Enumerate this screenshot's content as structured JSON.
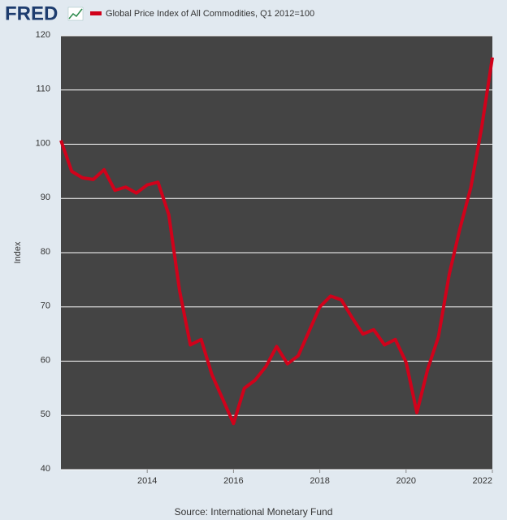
{
  "chart_data": {
    "type": "line",
    "logo": "FRED",
    "ylabel": "Index",
    "source": "Source: International Monetary Fund",
    "x": [
      2012,
      2012.25,
      2012.5,
      2012.75,
      2013,
      2013.25,
      2013.5,
      2013.75,
      2014,
      2014.25,
      2014.5,
      2014.75,
      2015,
      2015.25,
      2015.5,
      2015.75,
      2016,
      2016.25,
      2016.5,
      2016.75,
      2017,
      2017.25,
      2017.5,
      2017.75,
      2018,
      2018.25,
      2018.5,
      2018.75,
      2019,
      2019.25,
      2019.5,
      2019.75,
      2020,
      2020.25,
      2020.5,
      2020.75,
      2021,
      2021.25,
      2021.5,
      2021.75,
      2022
    ],
    "series": [
      {
        "name": "Global Price Index of All Commodities, Q1 2012=100",
        "color": "#d0021b",
        "values": [
          100.7,
          95,
          93.8,
          93.5,
          95.3,
          91.5,
          92.1,
          91,
          92.5,
          93,
          87,
          73,
          63,
          64,
          57.5,
          53,
          48.5,
          55,
          56.5,
          59,
          62.7,
          59.5,
          61,
          65.5,
          70,
          72,
          71.3,
          68,
          65,
          65.8,
          63,
          64,
          59.8,
          50.5,
          58.5,
          64.5,
          76,
          84.5,
          92,
          103,
          116
        ]
      }
    ],
    "xlim": [
      2012,
      2022
    ],
    "xticks": [
      2014,
      2016,
      2018,
      2020,
      2022
    ],
    "ylim": [
      40,
      120
    ],
    "yticks": [
      40,
      50,
      60,
      70,
      80,
      90,
      100,
      110,
      120
    ],
    "grid": true
  }
}
